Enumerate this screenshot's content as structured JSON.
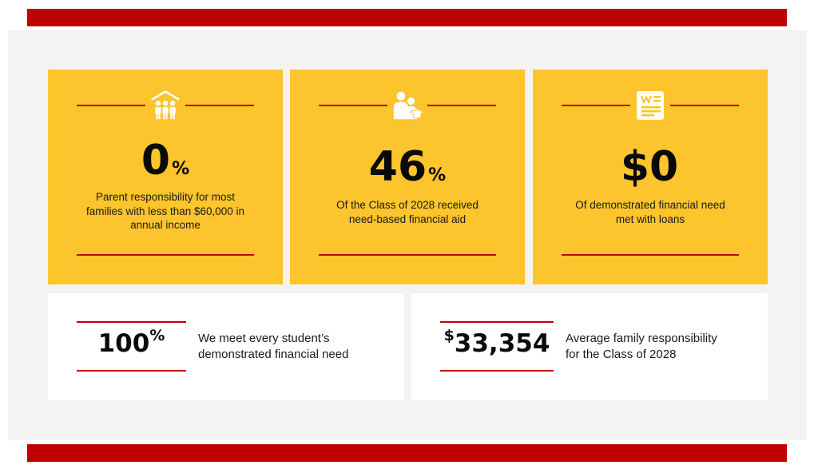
{
  "colors": {
    "accent_red": "#c00000",
    "card_yellow": "#fcc42d",
    "panel_bg": "#f5f3f1"
  },
  "cards": [
    {
      "icon": "school-family-icon",
      "value": "0",
      "unit": "%",
      "desc_lines": [
        "Parent responsibility for most",
        "families with less than $60,000 in",
        "annual income"
      ]
    },
    {
      "icon": "parent-graduate-icon",
      "value": "46",
      "unit": "%",
      "desc_lines": [
        "Of the Class of 2028 received",
        "need-based financial aid"
      ]
    },
    {
      "icon": "document-icon",
      "value": "$0",
      "unit": "",
      "desc_lines": [
        "Of demonstrated financial need",
        "met with loans"
      ]
    }
  ],
  "stats": [
    {
      "prefix": "",
      "value": "100",
      "suffix": "%",
      "text_lines": [
        "We meet every student’s",
        "demonstrated financial need"
      ]
    },
    {
      "prefix": "$",
      "value": "33,354",
      "suffix": "",
      "text_lines": [
        "Average family responsibility",
        "for the Class of 2028"
      ]
    }
  ]
}
